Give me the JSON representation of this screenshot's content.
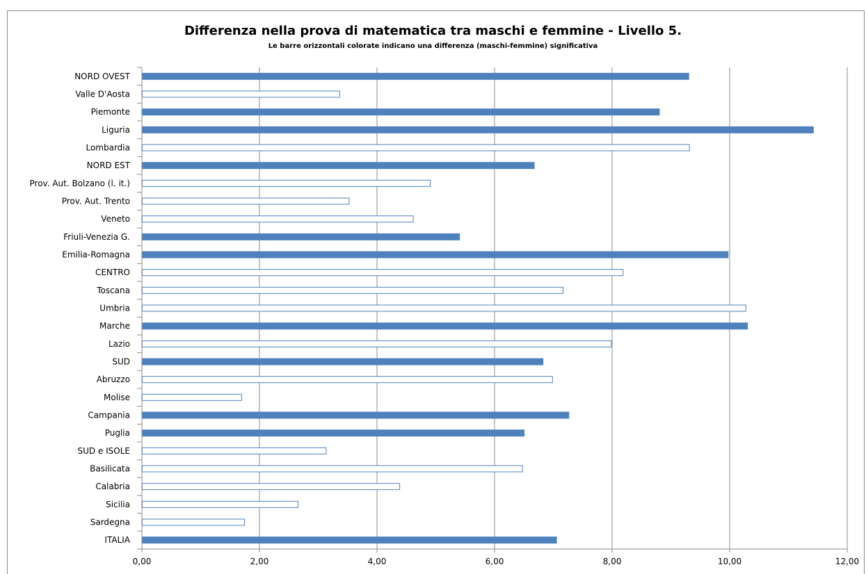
{
  "chart_data": {
    "type": "bar",
    "orientation": "horizontal",
    "title": "Differenza nella prova di matematica tra maschi e femmine - Livello 5.",
    "subtitle": "Le barre orizzontali colorate indicano una differenza (maschi-femmine) significativa",
    "xlim": [
      0,
      12
    ],
    "xticks": [
      "0,00",
      "2,00",
      "4,00",
      "6,00",
      "8,00",
      "10,00",
      "12,00"
    ],
    "grid": "vertical",
    "colors": {
      "significant": "#4f81bd",
      "outline": "#4f81bd",
      "grid": "#8c8c8c"
    },
    "categories": [
      "NORD OVEST",
      "Valle D'Aosta",
      "Piemonte",
      "Liguria",
      "Lombardia",
      "NORD EST",
      "Prov. Aut. Bolzano (l. it.)",
      "Prov. Aut. Trento",
      "Veneto",
      "Friuli-Venezia G.",
      "Emilia-Romagna",
      "CENTRO",
      "Toscana",
      "Umbria",
      "Marche",
      "Lazio",
      "SUD",
      "Abruzzo",
      "Molise",
      "Campania",
      "Puglia",
      "SUD e ISOLE",
      "Basilicata",
      "Calabria",
      "Sicilia",
      "Sardegna",
      "ITALIA"
    ],
    "values": [
      9.31,
      3.36,
      8.81,
      11.43,
      9.31,
      6.68,
      4.9,
      3.52,
      4.61,
      5.41,
      9.98,
      8.18,
      7.16,
      10.27,
      10.31,
      7.98,
      6.83,
      6.98,
      1.69,
      7.27,
      6.51,
      3.13,
      6.47,
      4.38,
      2.65,
      1.74,
      7.06
    ],
    "significant": [
      true,
      false,
      true,
      true,
      false,
      true,
      false,
      false,
      false,
      true,
      true,
      false,
      false,
      false,
      true,
      false,
      true,
      false,
      false,
      true,
      true,
      false,
      false,
      false,
      false,
      false,
      true
    ]
  }
}
